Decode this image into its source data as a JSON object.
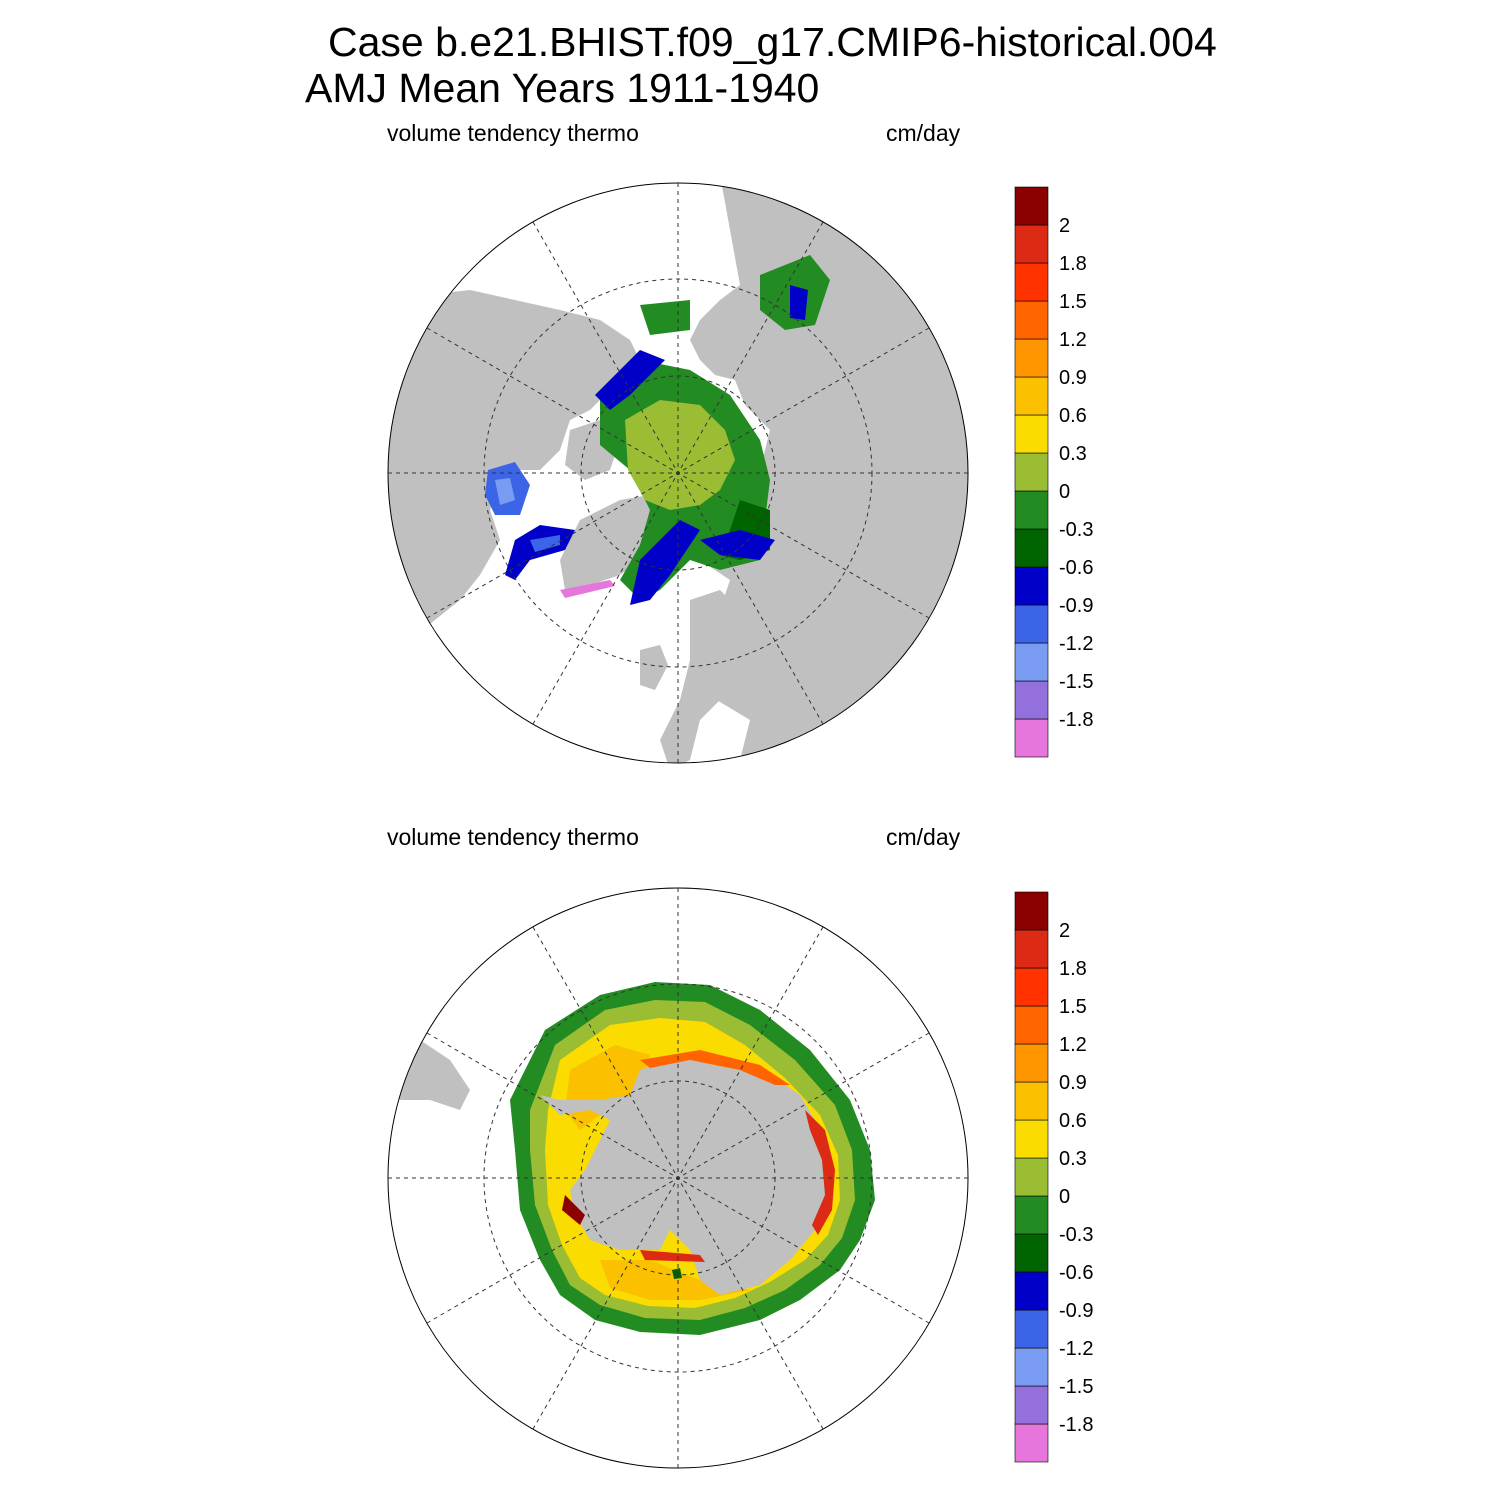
{
  "header": {
    "title_line1": "Case b.e21.BHIST.f09_g17.CMIP6-historical.004",
    "title_line2": "AMJ Mean   Years 1911-1940"
  },
  "panels": [
    {
      "hemisphere": "north",
      "left_label": "volume tendency thermo",
      "right_label": "cm/day"
    },
    {
      "hemisphere": "south",
      "left_label": "volume tendency thermo",
      "right_label": "cm/day"
    }
  ],
  "colorbar": {
    "colors": [
      "#e676dc",
      "#9470dc",
      "#799cf2",
      "#3c64e6",
      "#0000c8",
      "#006400",
      "#228b22",
      "#9abd34",
      "#fadc00",
      "#fbc000",
      "#ff9600",
      "#ff6400",
      "#ff3200",
      "#dc2a14",
      "#8b0000"
    ],
    "tick_labels": [
      "-1.8",
      "-1.5",
      "-1.2",
      "-0.9",
      "-0.6",
      "-0.3",
      "0",
      "0.3",
      "0.6",
      "0.9",
      "1.2",
      "1.5",
      "1.8",
      "2"
    ]
  },
  "map_colors": {
    "land": "#c0c0c0",
    "missing": "#ffffff"
  }
}
